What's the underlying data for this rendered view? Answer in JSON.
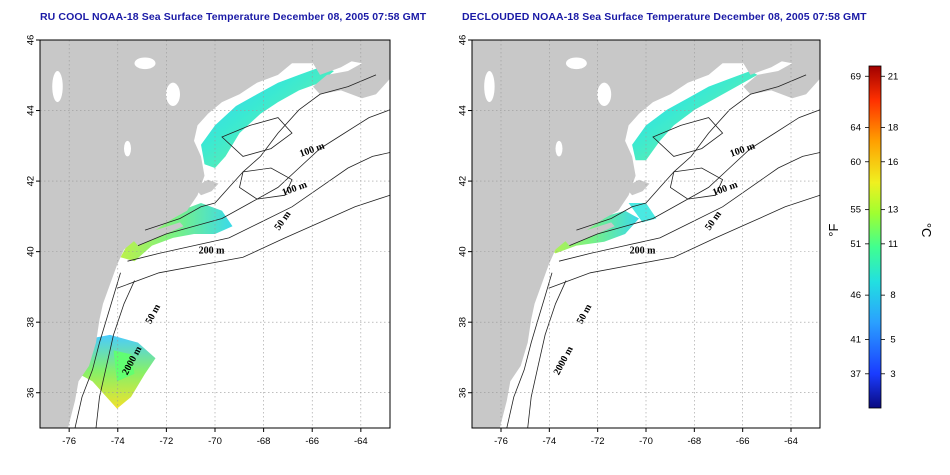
{
  "panels": [
    {
      "id": "left",
      "title": "RU COOL NOAA-18 Sea Surface Temperature December 08, 2005 07:58 GMT",
      "contour_labels": [
        "100 m",
        "100 m",
        "50 m",
        "200 m",
        "50 m",
        "2000 m"
      ]
    },
    {
      "id": "right",
      "title": "DECLOUDED NOAA-18 Sea Surface Temperature December 08, 2005 07:58 GMT",
      "contour_labels": [
        "100 m",
        "100 m",
        "50 m",
        "200 m",
        "50 m",
        "2000 m"
      ]
    }
  ],
  "map": {
    "lon_range": [
      -77.2,
      -62.8
    ],
    "lat_range": [
      35.0,
      46.0
    ],
    "x_ticks": [
      "-76",
      "-74",
      "-72",
      "-70",
      "-68",
      "-66",
      "-64"
    ],
    "y_ticks": [
      "36",
      "38",
      "40",
      "42",
      "44",
      "46"
    ],
    "land_color": "#c8c8c8",
    "ocean_color": "#ffffff",
    "grid": "dotted"
  },
  "colorbar": {
    "fahrenheit_ticks": [
      "69",
      "64",
      "60",
      "55",
      "51",
      "46",
      "41",
      "37"
    ],
    "celsius_ticks": [
      "21",
      "18",
      "16",
      "13",
      "11",
      "8",
      "5",
      "3"
    ],
    "left_unit": "°F",
    "right_unit": "°C",
    "colors": [
      "#0a0a80",
      "#1a3cff",
      "#2aa0ff",
      "#22e0e0",
      "#40ff90",
      "#a0ff30",
      "#f0f020",
      "#ffa000",
      "#ff3000",
      "#a00000"
    ]
  }
}
